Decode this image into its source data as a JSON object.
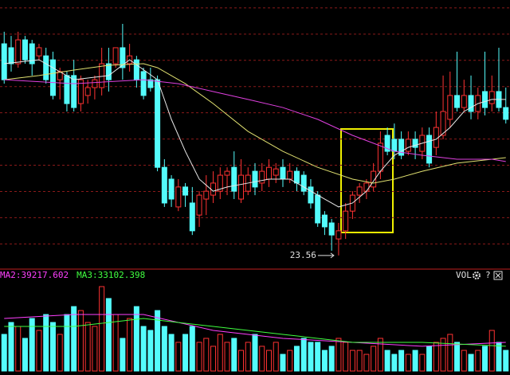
{
  "chart_data": [
    {
      "type": "candlestick",
      "xlim": [
        -0.6,
        72.6
      ],
      "ylim": [
        23.1,
        33.3
      ],
      "yticks": [
        24,
        25,
        26,
        27,
        28,
        29,
        30,
        31,
        32,
        33
      ],
      "grid": true,
      "up_color": "#ff3232",
      "down_color": "#54fcfc",
      "x": [
        0,
        1,
        2,
        3,
        4,
        5,
        6,
        7,
        8,
        9,
        10,
        11,
        12,
        13,
        14,
        15,
        16,
        17,
        18,
        19,
        20,
        21,
        22,
        23,
        24,
        25,
        26,
        27,
        28,
        29,
        30,
        31,
        32,
        33,
        34,
        35,
        36,
        37,
        38,
        39,
        40,
        41,
        42,
        43,
        44,
        45,
        46,
        47,
        48,
        49,
        50,
        51,
        52,
        53,
        54,
        55,
        56,
        57,
        58,
        59,
        60,
        61,
        62,
        63,
        64,
        65,
        66,
        67,
        68,
        69,
        70,
        71,
        72
      ],
      "ohlc": [
        [
          31.63,
          32.09,
          30.11,
          30.26
        ],
        [
          31.48,
          31.93,
          30.57,
          30.87
        ],
        [
          30.87,
          32.09,
          30.72,
          31.78
        ],
        [
          31.78,
          31.93,
          30.87,
          31.02
        ],
        [
          31.63,
          31.78,
          30.42,
          30.87
        ],
        [
          31.17,
          31.63,
          31.02,
          31.48
        ],
        [
          31.17,
          31.48,
          30.11,
          30.26
        ],
        [
          31.02,
          31.33,
          29.51,
          29.66
        ],
        [
          30.26,
          30.72,
          29.51,
          30.57
        ],
        [
          30.42,
          30.57,
          29.05,
          29.35
        ],
        [
          30.42,
          31.02,
          29.05,
          29.2
        ],
        [
          29.35,
          30.42,
          29.05,
          30.26
        ],
        [
          29.66,
          30.26,
          29.35,
          29.96
        ],
        [
          29.96,
          30.42,
          29.51,
          30.26
        ],
        [
          29.96,
          31.48,
          29.66,
          30.87
        ],
        [
          30.87,
          31.48,
          29.81,
          30.26
        ],
        [
          30.87,
          31.48,
          30.72,
          31.48
        ],
        [
          31.48,
          32.39,
          30.26,
          30.72
        ],
        [
          30.87,
          31.63,
          30.57,
          31.17
        ],
        [
          31.02,
          31.17,
          29.96,
          30.26
        ],
        [
          30.57,
          30.72,
          29.51,
          29.66
        ],
        [
          30.26,
          30.72,
          29.81,
          29.96
        ],
        [
          30.26,
          30.42,
          26.77,
          26.92
        ],
        [
          26.92,
          27.23,
          25.41,
          25.56
        ],
        [
          26.47,
          26.62,
          25.41,
          25.71
        ],
        [
          25.41,
          26.47,
          25.25,
          26.17
        ],
        [
          26.17,
          26.32,
          25.41,
          25.86
        ],
        [
          25.56,
          26.17,
          24.34,
          24.5
        ],
        [
          25.1,
          26.01,
          24.65,
          25.86
        ],
        [
          25.71,
          26.62,
          25.1,
          26.01
        ],
        [
          25.86,
          26.77,
          25.56,
          26.32
        ],
        [
          26.01,
          26.92,
          25.71,
          26.62
        ],
        [
          26.62,
          26.92,
          25.86,
          26.77
        ],
        [
          26.92,
          27.53,
          25.71,
          26.01
        ],
        [
          25.71,
          27.23,
          25.56,
          26.62
        ],
        [
          26.01,
          26.92,
          25.86,
          26.62
        ],
        [
          26.77,
          27.08,
          25.86,
          26.17
        ],
        [
          26.32,
          27.08,
          26.01,
          26.77
        ],
        [
          26.47,
          27.23,
          26.17,
          26.92
        ],
        [
          26.62,
          27.08,
          26.32,
          26.86
        ],
        [
          26.92,
          27.23,
          26.17,
          26.47
        ],
        [
          26.47,
          27.08,
          26.32,
          26.77
        ],
        [
          26.77,
          26.92,
          26.01,
          26.32
        ],
        [
          26.62,
          26.77,
          25.86,
          26.01
        ],
        [
          26.17,
          26.47,
          25.35,
          25.56
        ],
        [
          25.86,
          26.01,
          24.65,
          24.8
        ],
        [
          25.1,
          25.25,
          24.34,
          24.65
        ],
        [
          24.8,
          24.95,
          23.74,
          24.34
        ],
        [
          24.19,
          24.8,
          23.56,
          24.5
        ],
        [
          24.5,
          25.56,
          24.19,
          25.25
        ],
        [
          25.25,
          26.01,
          24.95,
          25.86
        ],
        [
          25.86,
          26.32,
          25.56,
          26.17
        ],
        [
          26.01,
          26.47,
          25.71,
          26.32
        ],
        [
          26.17,
          27.08,
          26.01,
          26.77
        ],
        [
          26.77,
          28.29,
          26.47,
          27.84
        ],
        [
          28.14,
          28.44,
          27.38,
          27.53
        ],
        [
          27.99,
          28.59,
          27.23,
          27.53
        ],
        [
          27.99,
          28.29,
          27.23,
          27.38
        ],
        [
          27.53,
          28.29,
          27.38,
          27.99
        ],
        [
          27.99,
          28.29,
          27.23,
          27.68
        ],
        [
          27.53,
          28.44,
          27.23,
          28.14
        ],
        [
          28.14,
          28.44,
          26.92,
          27.08
        ],
        [
          27.68,
          29.05,
          27.38,
          28.44
        ],
        [
          28.14,
          30.42,
          27.99,
          29.05
        ],
        [
          28.75,
          30.57,
          28.44,
          29.66
        ],
        [
          29.66,
          31.33,
          29.05,
          29.2
        ],
        [
          29.2,
          30.26,
          29.05,
          29.66
        ],
        [
          29.66,
          30.42,
          28.75,
          29.05
        ],
        [
          29.05,
          29.96,
          28.75,
          29.66
        ],
        [
          29.81,
          31.33,
          28.9,
          29.2
        ],
        [
          29.35,
          30.42,
          29.05,
          29.81
        ],
        [
          29.81,
          31.48,
          29.05,
          29.2
        ],
        [
          29.2,
          29.96,
          28.59,
          28.75
        ]
      ],
      "lines": [
        {
          "color": "#e8e8e8",
          "x": [
            0,
            5,
            10,
            15,
            18,
            22,
            24,
            26,
            28,
            30,
            32,
            35,
            38,
            41,
            43,
            46,
            48,
            50,
            52,
            54,
            56,
            58,
            60,
            62,
            64,
            66,
            68,
            70,
            72
          ],
          "values": [
            30.87,
            31.02,
            30.26,
            30.42,
            31.02,
            30.26,
            28.75,
            27.53,
            26.47,
            26.01,
            26.17,
            26.32,
            26.47,
            26.47,
            26.17,
            25.71,
            25.41,
            25.56,
            26.01,
            26.77,
            27.38,
            27.68,
            27.84,
            27.99,
            28.44,
            29.05,
            29.35,
            29.51,
            29.51
          ]
        },
        {
          "color": "#e0e070",
          "x": [
            0,
            5,
            10,
            15,
            20,
            22,
            26,
            30,
            35,
            40,
            45,
            50,
            53,
            56,
            60,
            65,
            70,
            72
          ],
          "values": [
            30.26,
            30.42,
            30.63,
            30.81,
            30.87,
            30.72,
            30.11,
            29.35,
            28.29,
            27.53,
            26.92,
            26.47,
            26.32,
            26.47,
            26.77,
            27.08,
            27.23,
            27.29
          ]
        },
        {
          "color": "#e040e0",
          "x": [
            0,
            10,
            20,
            25,
            30,
            35,
            40,
            45,
            50,
            53,
            56,
            60,
            65,
            70,
            72
          ],
          "values": [
            30.26,
            30.11,
            30.26,
            30.11,
            29.81,
            29.51,
            29.2,
            28.75,
            28.14,
            27.84,
            27.53,
            27.38,
            27.23,
            27.23,
            27.14
          ]
        }
      ],
      "annotations": [
        {
          "label": "23.56",
          "value": 23.56,
          "x": 48
        }
      ]
    },
    {
      "type": "bar",
      "title": "VOL",
      "ylim": [
        0,
        80000
      ],
      "xlim": [
        -0.6,
        72.6
      ],
      "values": [
        32300,
        42800,
        39300,
        28800,
        46300,
        35800,
        49800,
        42800,
        32300,
        49800,
        56800,
        53300,
        42800,
        39300,
        74400,
        63900,
        49800,
        28800,
        46300,
        56800,
        39300,
        35800,
        53300,
        39300,
        32300,
        25300,
        32300,
        39300,
        25300,
        28800,
        21800,
        32300,
        25300,
        28800,
        18200,
        25300,
        32300,
        21800,
        18200,
        25300,
        14700,
        18200,
        21800,
        28800,
        25300,
        25300,
        18200,
        21800,
        28800,
        25300,
        18200,
        18200,
        14700,
        21800,
        28800,
        18200,
        14700,
        18200,
        14700,
        18200,
        14700,
        21800,
        25300,
        28800,
        32300,
        25300,
        18200,
        14700,
        18200,
        21800,
        35800,
        25300,
        18200
      ],
      "lines": [
        {
          "name": "MA2:39217.602",
          "color": "#ff40ff",
          "x": [
            0,
            10,
            20,
            30,
            40,
            50,
            60,
            72
          ],
          "values": [
            46300,
            49800,
            49800,
            35800,
            28800,
            25300,
            21800,
            25300
          ]
        },
        {
          "name": "MA3:33102.398",
          "color": "#40ff40",
          "x": [
            0,
            10,
            20,
            30,
            40,
            50,
            60,
            72
          ],
          "values": [
            39300,
            39300,
            46300,
            39300,
            32300,
            25300,
            25300,
            21800
          ]
        }
      ]
    }
  ],
  "toolbar": {
    "help": "?"
  }
}
